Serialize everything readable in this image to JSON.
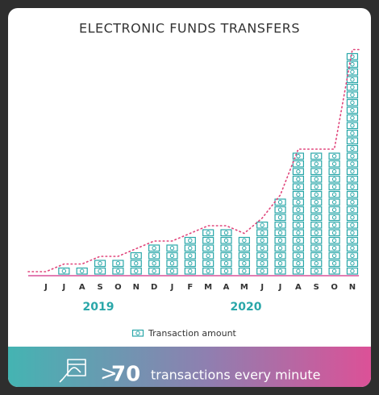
{
  "chart_data": {
    "type": "pictogram",
    "title": "ELECTRONIC FUNDS TRANSFERS",
    "categories": [
      "J",
      "J",
      "A",
      "S",
      "O",
      "N",
      "D",
      "J",
      "F",
      "M",
      "A",
      "M",
      "J",
      "J",
      "A",
      "S",
      "O",
      "N"
    ],
    "values": [
      0,
      1,
      1,
      2,
      2,
      3,
      4,
      4,
      5,
      6,
      6,
      5,
      7,
      10,
      16,
      16,
      16,
      29
    ],
    "color": "#2aa7a9",
    "trend_color": "#e0457b",
    "years": [
      "2019",
      "2020"
    ],
    "legend": "Transaction amount",
    "footer": {
      "highlight_prefix": ">",
      "highlight": "70",
      "text": "transactions every minute"
    }
  }
}
